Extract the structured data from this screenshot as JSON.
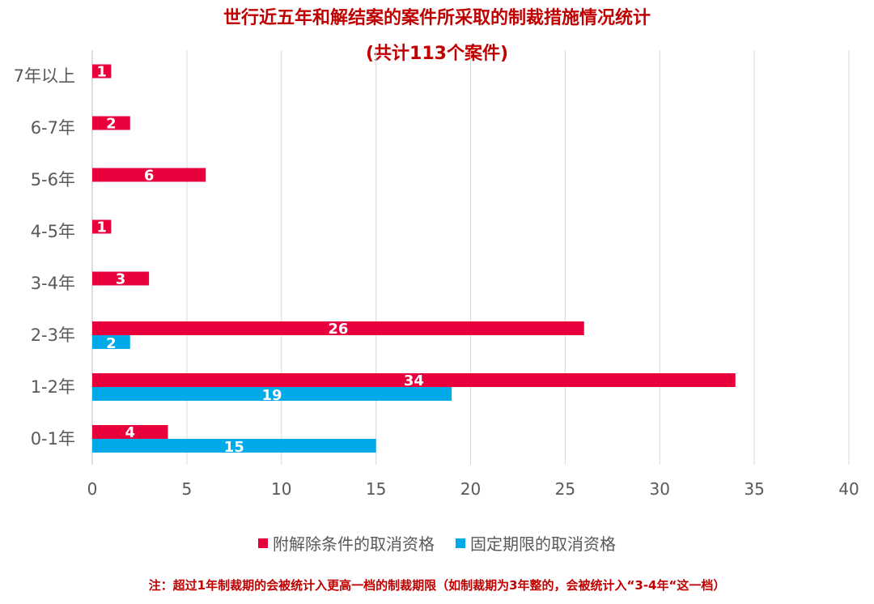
{
  "chart_data": {
    "type": "bar",
    "orientation": "horizontal",
    "title": "世行近五年和解结案的案件所采取的制裁措施情况统计",
    "subtitle": "(共计113个案件)",
    "categories": [
      "7年以上",
      "6-7年",
      "5-6年",
      "4-5年",
      "3-4年",
      "2-3年",
      "1-2年",
      "0-1年"
    ],
    "series": [
      {
        "name": "附解除条件的取消资格",
        "color": "#e8003d",
        "values": [
          1,
          2,
          6,
          1,
          3,
          26,
          34,
          4
        ]
      },
      {
        "name": "固定期限的取消资格",
        "color": "#00a9e8",
        "values": [
          null,
          null,
          null,
          null,
          null,
          2,
          19,
          15
        ]
      }
    ],
    "x_ticks": [
      0,
      5,
      10,
      15,
      20,
      25,
      30,
      35,
      40
    ],
    "xlim": [
      0,
      40
    ],
    "grid": "vertical",
    "legend_position": "bottom"
  },
  "note": "注：超过1年制裁期的会被统计入更高一档的制裁期限（如制裁期为3年整的，会被统计入“3-4年“这一档）"
}
